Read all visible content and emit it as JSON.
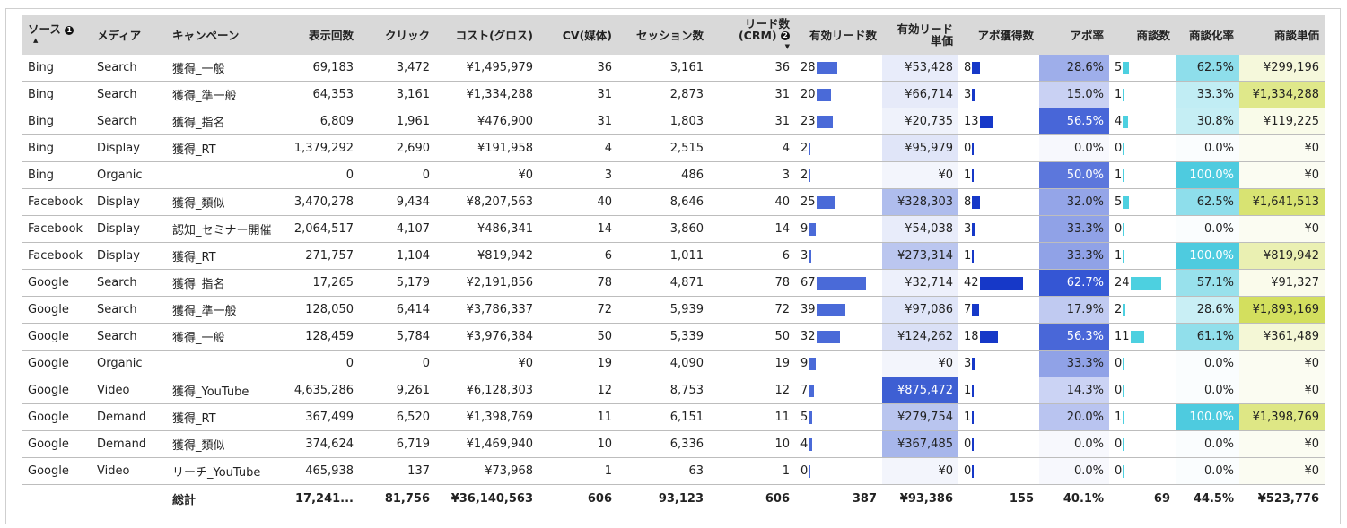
{
  "headers": [
    "ソース",
    "メディア",
    "キャンペーン",
    "表示回数",
    "クリック",
    "コスト(グロス)",
    "CV(媒体)",
    "セッション数",
    "リード数 (CRM)",
    "有効リード数",
    "有効リード 単価",
    "アポ獲得数",
    "アポ率",
    "商談数",
    "商談化率",
    "商談単価"
  ],
  "header_badges": {
    "source": "1",
    "lead": "2"
  },
  "sort": {
    "source": "▲",
    "lead": "▼"
  },
  "colors": {
    "lead_bar": "#4a6ad8",
    "apo_bar": "#1638c8",
    "deal_bar": "#4dd0e0",
    "unit_heat": "#3e5fd3",
    "apo_rate_heat": "#3556d4",
    "deal_rate_heat": "#4ecbdf",
    "deal_unit_heat": "#d3df5e"
  },
  "rows": [
    [
      "Bing",
      "Search",
      "獲得_一般",
      "69,183",
      "3,472",
      "¥1,495,979",
      "36",
      "3,161",
      "36",
      28,
      "¥53,428",
      8,
      "28.6%",
      5,
      "62.5%",
      "¥299,196"
    ],
    [
      "Bing",
      "Search",
      "獲得_準一般",
      "64,353",
      "3,161",
      "¥1,334,288",
      "31",
      "2,873",
      "31",
      20,
      "¥66,714",
      3,
      "15.0%",
      1,
      "33.3%",
      "¥1,334,288"
    ],
    [
      "Bing",
      "Search",
      "獲得_指名",
      "6,809",
      "1,961",
      "¥476,900",
      "31",
      "1,803",
      "31",
      23,
      "¥20,735",
      13,
      "56.5%",
      4,
      "30.8%",
      "¥119,225"
    ],
    [
      "Bing",
      "Display",
      "獲得_RT",
      "1,379,292",
      "2,690",
      "¥191,958",
      "4",
      "2,515",
      "4",
      2,
      "¥95,979",
      0,
      "0.0%",
      0,
      "0.0%",
      "¥0"
    ],
    [
      "Bing",
      "Organic",
      "",
      "0",
      "0",
      "¥0",
      "3",
      "486",
      "3",
      2,
      "¥0",
      1,
      "50.0%",
      1,
      "100.0%",
      "¥0"
    ],
    [
      "Facebook",
      "Display",
      "獲得_類似",
      "3,470,278",
      "9,434",
      "¥8,207,563",
      "40",
      "8,646",
      "40",
      25,
      "¥328,303",
      8,
      "32.0%",
      5,
      "62.5%",
      "¥1,641,513"
    ],
    [
      "Facebook",
      "Display",
      "認知_セミナー開催",
      "2,064,517",
      "4,107",
      "¥486,341",
      "14",
      "3,860",
      "14",
      9,
      "¥54,038",
      3,
      "33.3%",
      0,
      "0.0%",
      "¥0"
    ],
    [
      "Facebook",
      "Display",
      "獲得_RT",
      "271,757",
      "1,104",
      "¥819,942",
      "6",
      "1,011",
      "6",
      3,
      "¥273,314",
      1,
      "33.3%",
      1,
      "100.0%",
      "¥819,942"
    ],
    [
      "Google",
      "Search",
      "獲得_指名",
      "17,265",
      "5,179",
      "¥2,191,856",
      "78",
      "4,871",
      "78",
      67,
      "¥32,714",
      42,
      "62.7%",
      24,
      "57.1%",
      "¥91,327"
    ],
    [
      "Google",
      "Search",
      "獲得_準一般",
      "128,050",
      "6,414",
      "¥3,786,337",
      "72",
      "5,939",
      "72",
      39,
      "¥97,086",
      7,
      "17.9%",
      2,
      "28.6%",
      "¥1,893,169"
    ],
    [
      "Google",
      "Search",
      "獲得_一般",
      "128,459",
      "5,784",
      "¥3,976,384",
      "50",
      "5,339",
      "50",
      32,
      "¥124,262",
      18,
      "56.3%",
      11,
      "61.1%",
      "¥361,489"
    ],
    [
      "Google",
      "Organic",
      "",
      "0",
      "0",
      "¥0",
      "19",
      "4,090",
      "19",
      9,
      "¥0",
      3,
      "33.3%",
      0,
      "0.0%",
      "¥0"
    ],
    [
      "Google",
      "Video",
      "獲得_YouTube",
      "4,635,286",
      "9,261",
      "¥6,128,303",
      "12",
      "8,753",
      "12",
      7,
      "¥875,472",
      1,
      "14.3%",
      0,
      "0.0%",
      "¥0"
    ],
    [
      "Google",
      "Demand",
      "獲得_RT",
      "367,499",
      "6,520",
      "¥1,398,769",
      "11",
      "6,151",
      "11",
      5,
      "¥279,754",
      1,
      "20.0%",
      1,
      "100.0%",
      "¥1,398,769"
    ],
    [
      "Google",
      "Demand",
      "獲得_類似",
      "374,624",
      "6,719",
      "¥1,469,940",
      "10",
      "6,336",
      "10",
      4,
      "¥367,485",
      0,
      "0.0%",
      0,
      "0.0%",
      "¥0"
    ],
    [
      "Google",
      "Video",
      "リーチ_YouTube",
      "465,938",
      "137",
      "¥73,968",
      "1",
      "63",
      "1",
      0,
      "¥0",
      0,
      "0.0%",
      0,
      "0.0%",
      "¥0"
    ]
  ],
  "total": [
    "",
    "",
    "総計",
    "17,241...",
    "81,756",
    "¥36,140,563",
    "606",
    "93,123",
    "606",
    "387",
    "¥93,386",
    "155",
    "40.1%",
    "69",
    "44.5%",
    "¥523,776"
  ]
}
